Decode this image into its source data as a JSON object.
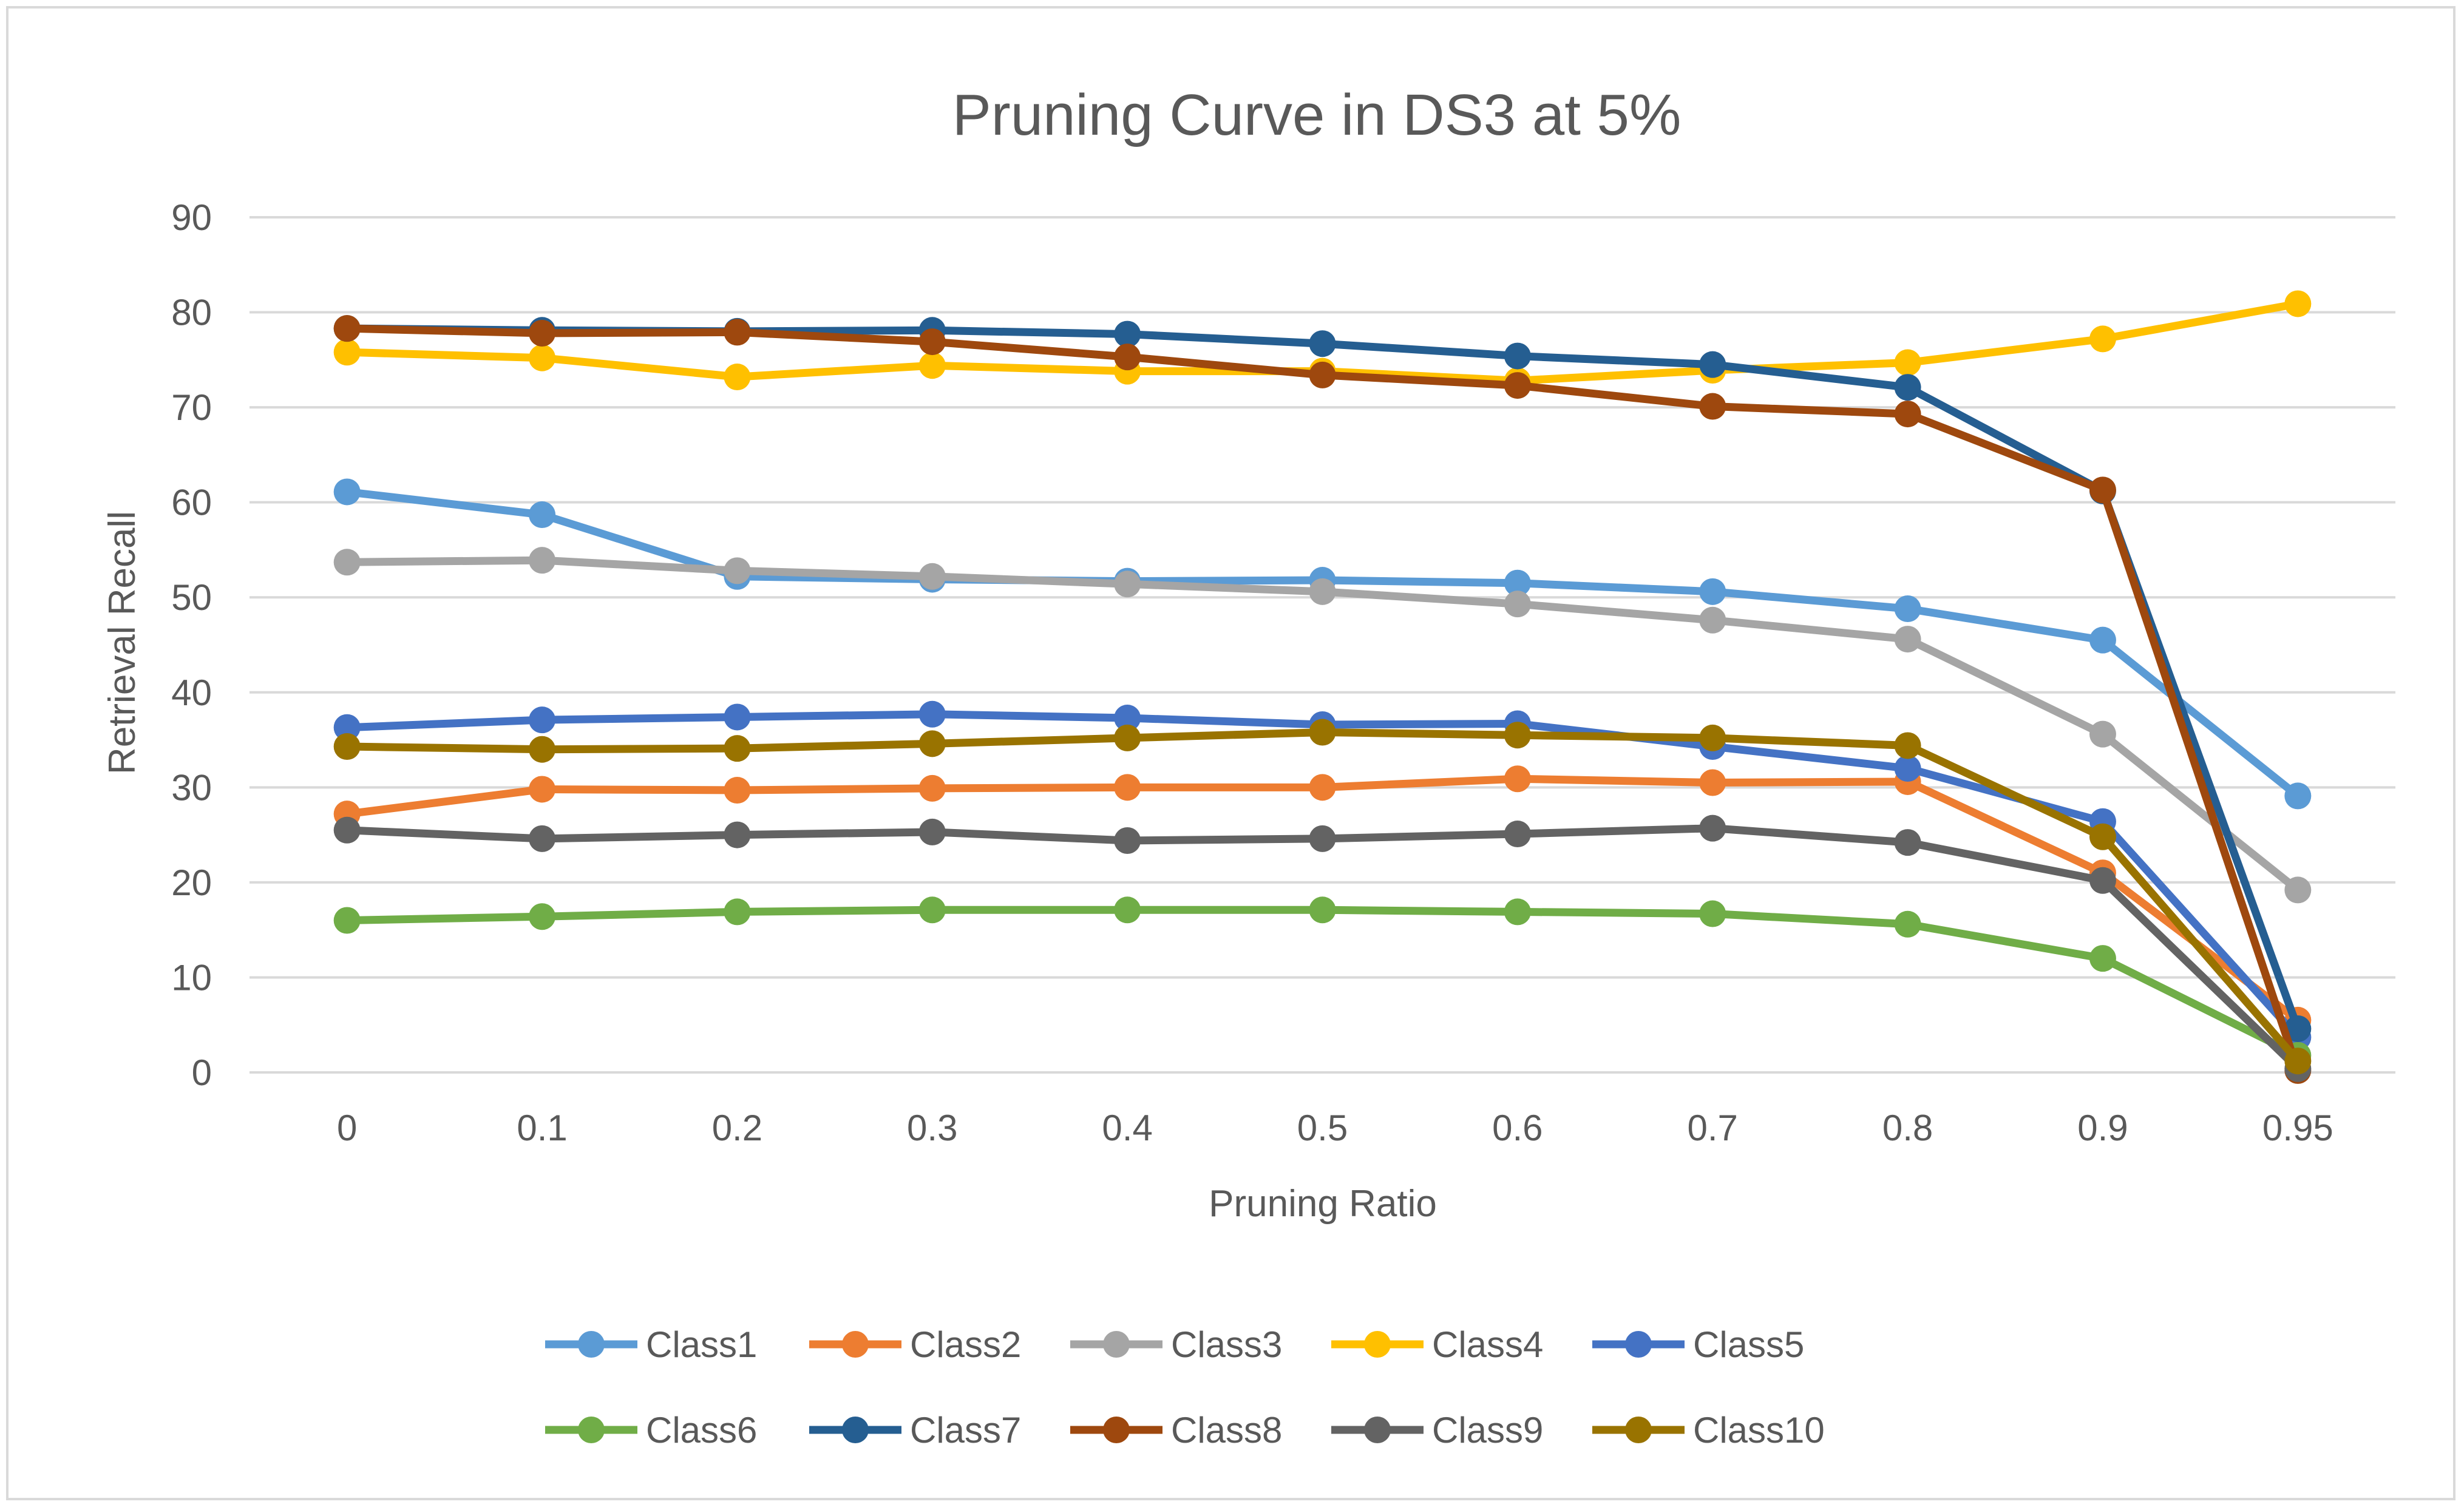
{
  "chart_data": {
    "type": "line",
    "title": "Pruning Curve in DS3 at 5%",
    "xlabel": "Pruning Ratio",
    "ylabel": "Retrieval Recall",
    "categories": [
      "0",
      "0.1",
      "0.2",
      "0.3",
      "0.4",
      "0.5",
      "0.6",
      "0.7",
      "0.8",
      "0.9",
      "0.95"
    ],
    "ylim": [
      0,
      90
    ],
    "yticks": [
      "0",
      "10",
      "20",
      "30",
      "40",
      "50",
      "60",
      "70",
      "80",
      "90"
    ],
    "grid": true,
    "legend_position": "bottom",
    "series": [
      {
        "name": "Class1",
        "color": "#5B9BD5",
        "values": [
          61.1,
          58.7,
          52.2,
          51.9,
          51.7,
          51.8,
          51.5,
          50.6,
          48.8,
          45.5,
          29.1
        ]
      },
      {
        "name": "Class2",
        "color": "#ED7D31",
        "values": [
          27.2,
          29.8,
          29.7,
          29.9,
          30.0,
          30.0,
          30.9,
          30.5,
          30.6,
          21.0,
          5.5
        ]
      },
      {
        "name": "Class3",
        "color": "#A5A5A5",
        "values": [
          53.7,
          53.9,
          52.8,
          52.2,
          51.4,
          50.6,
          49.3,
          47.6,
          45.6,
          35.6,
          19.2
        ]
      },
      {
        "name": "Class4",
        "color": "#FFC000",
        "values": [
          75.8,
          75.2,
          73.2,
          74.4,
          73.8,
          73.8,
          72.8,
          73.9,
          74.7,
          77.2,
          80.9
        ]
      },
      {
        "name": "Class5",
        "color": "#4472C4",
        "values": [
          36.3,
          37.1,
          37.4,
          37.7,
          37.3,
          36.6,
          36.7,
          34.3,
          32.0,
          26.4,
          3.7
        ]
      },
      {
        "name": "Class6",
        "color": "#70AD47",
        "values": [
          16.0,
          16.4,
          16.9,
          17.1,
          17.1,
          17.1,
          16.9,
          16.7,
          15.6,
          12.0,
          1.8
        ]
      },
      {
        "name": "Class7",
        "color": "#255E91",
        "values": [
          78.3,
          78.1,
          78.0,
          78.1,
          77.7,
          76.7,
          75.4,
          74.5,
          72.1,
          61.2,
          4.6
        ]
      },
      {
        "name": "Class8",
        "color": "#9E480E",
        "values": [
          78.3,
          77.8,
          77.9,
          76.9,
          75.3,
          73.4,
          72.3,
          70.1,
          69.3,
          61.3,
          0.2
        ]
      },
      {
        "name": "Class9",
        "color": "#636363",
        "values": [
          25.5,
          24.6,
          25.0,
          25.3,
          24.4,
          24.6,
          25.1,
          25.7,
          24.2,
          20.2,
          0.4
        ]
      },
      {
        "name": "Class10",
        "color": "#997300",
        "values": [
          34.3,
          34.0,
          34.1,
          34.6,
          35.2,
          35.8,
          35.5,
          35.2,
          34.4,
          24.8,
          1.2
        ]
      }
    ]
  }
}
